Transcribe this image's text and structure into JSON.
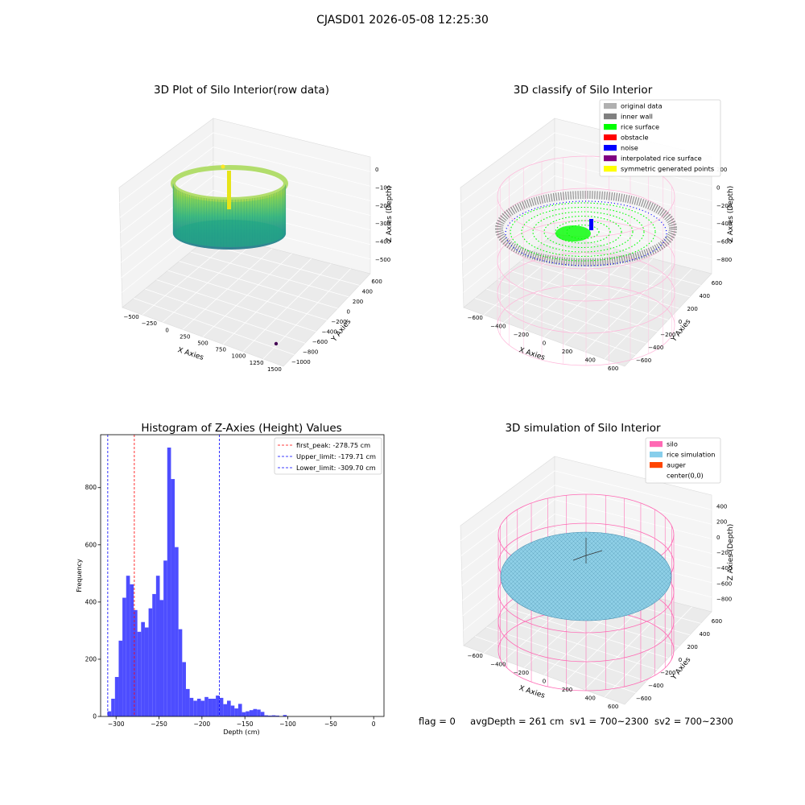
{
  "figure": {
    "title": "CJASD01 2026-05-08 12:25:30",
    "status": {
      "flag": "flag = 0",
      "avg_depth": "avgDepth = 261 cm",
      "sv1": "sv1 = 700~2300",
      "sv2": "sv2 = 700~2300"
    }
  },
  "colors": {
    "viridis": [
      "#440154",
      "#31688e",
      "#21918c",
      "#35b779",
      "#90d743",
      "#fde725"
    ],
    "original": "#b0b0b0",
    "inner_wall": "#808080",
    "rice_surface": "#00ff00",
    "obstacle": "#ff0000",
    "noise": "#0000ff",
    "interpolated": "#800080",
    "symmetric": "#ffff00",
    "silo": "#ff69b4",
    "rice_sim": "#87ceeb",
    "auger": "#ff4500",
    "histogram": "#4d4dff",
    "peak_line": "#ff0000",
    "limit_line": "#0000ff"
  },
  "chart_data": [
    {
      "type": "scatter",
      "projection": "3d",
      "title": "3D Plot of Silo Interior(row data)",
      "xlabel": "X Axies",
      "ylabel": "Y Axies",
      "zlabel": "Z Axies (Depth)",
      "x_ticks": [
        "−500",
        "−250",
        "0",
        "250",
        "500",
        "750",
        "1000",
        "1250",
        "1500"
      ],
      "y_ticks": [
        "−1000",
        "−800",
        "−600",
        "−400",
        "−200",
        "0",
        "200",
        "400",
        "600"
      ],
      "z_ticks": [
        "−500",
        "−400",
        "−300",
        "−200",
        "−100",
        "0"
      ],
      "colormap": "viridis",
      "outlier": {
        "x": 1350,
        "y": -900,
        "z": -500
      }
    },
    {
      "type": "scatter",
      "projection": "3d",
      "title": "3D classify of Silo Interior",
      "xlabel": "X Axies",
      "ylabel": "Y Axies",
      "zlabel": "Z Axies (Depth)",
      "x_ticks": [
        "−600",
        "−400",
        "−200",
        "0",
        "200",
        "400",
        "600"
      ],
      "y_ticks": [
        "−600",
        "−400",
        "−200",
        "0",
        "200",
        "400",
        "600"
      ],
      "z_ticks": [
        "−800",
        "−600",
        "−400",
        "−200",
        "0",
        "200"
      ],
      "legend": [
        "original data",
        "inner wall",
        "rice surface",
        "obstacle",
        "noise",
        "interpolated rice surface",
        "symmetric generated points"
      ],
      "legend_placement": "top-right"
    },
    {
      "type": "bar",
      "title": "Histogram of Z-Axies (Height) Values",
      "xlabel": "Depth (cm)",
      "ylabel": "Frequency",
      "xlim": [
        -318,
        12
      ],
      "ylim": [
        0,
        985
      ],
      "x_ticks": [
        -300,
        -250,
        -200,
        -150,
        -100,
        -50,
        0
      ],
      "y_ticks": [
        0,
        200,
        400,
        600,
        800
      ],
      "bin_start": -310,
      "bin_width": 4.35,
      "values": [
        18,
        62,
        138,
        265,
        415,
        492,
        462,
        372,
        296,
        330,
        311,
        378,
        428,
        492,
        407,
        545,
        940,
        830,
        592,
        305,
        190,
        96,
        65,
        55,
        62,
        55,
        68,
        62,
        62,
        73,
        65,
        43,
        55,
        38,
        28,
        44,
        15,
        18,
        22,
        26,
        24,
        16,
        4,
        3,
        4,
        3,
        0,
        5
      ],
      "lines": [
        {
          "label": "first_peak: -278.75 cm",
          "x": -278.75,
          "style": "red-dashed"
        },
        {
          "label": "Upper_limit: -179.71 cm",
          "x": -179.71,
          "style": "blue-dashed"
        },
        {
          "label": "Lower_limit: -309.70 cm",
          "x": -309.7,
          "style": "blue-dashed"
        }
      ],
      "legend_placement": "top-right"
    },
    {
      "type": "scatter",
      "projection": "3d",
      "title": "3D simulation of Silo Interior",
      "xlabel": "X Axies",
      "ylabel": "Y Axies",
      "zlabel": "Z Axies (Depth)",
      "x_ticks": [
        "−600",
        "−400",
        "−200",
        "0",
        "200",
        "400",
        "600"
      ],
      "y_ticks": [
        "−600",
        "−400",
        "−200",
        "0",
        "200",
        "400",
        "600"
      ],
      "z_ticks": [
        "−800",
        "−600",
        "−400",
        "−200",
        "0",
        "200",
        "400"
      ],
      "legend": [
        "silo",
        "rice simulation",
        "auger",
        "center(0,0)"
      ],
      "legend_placement": "top-right"
    }
  ]
}
